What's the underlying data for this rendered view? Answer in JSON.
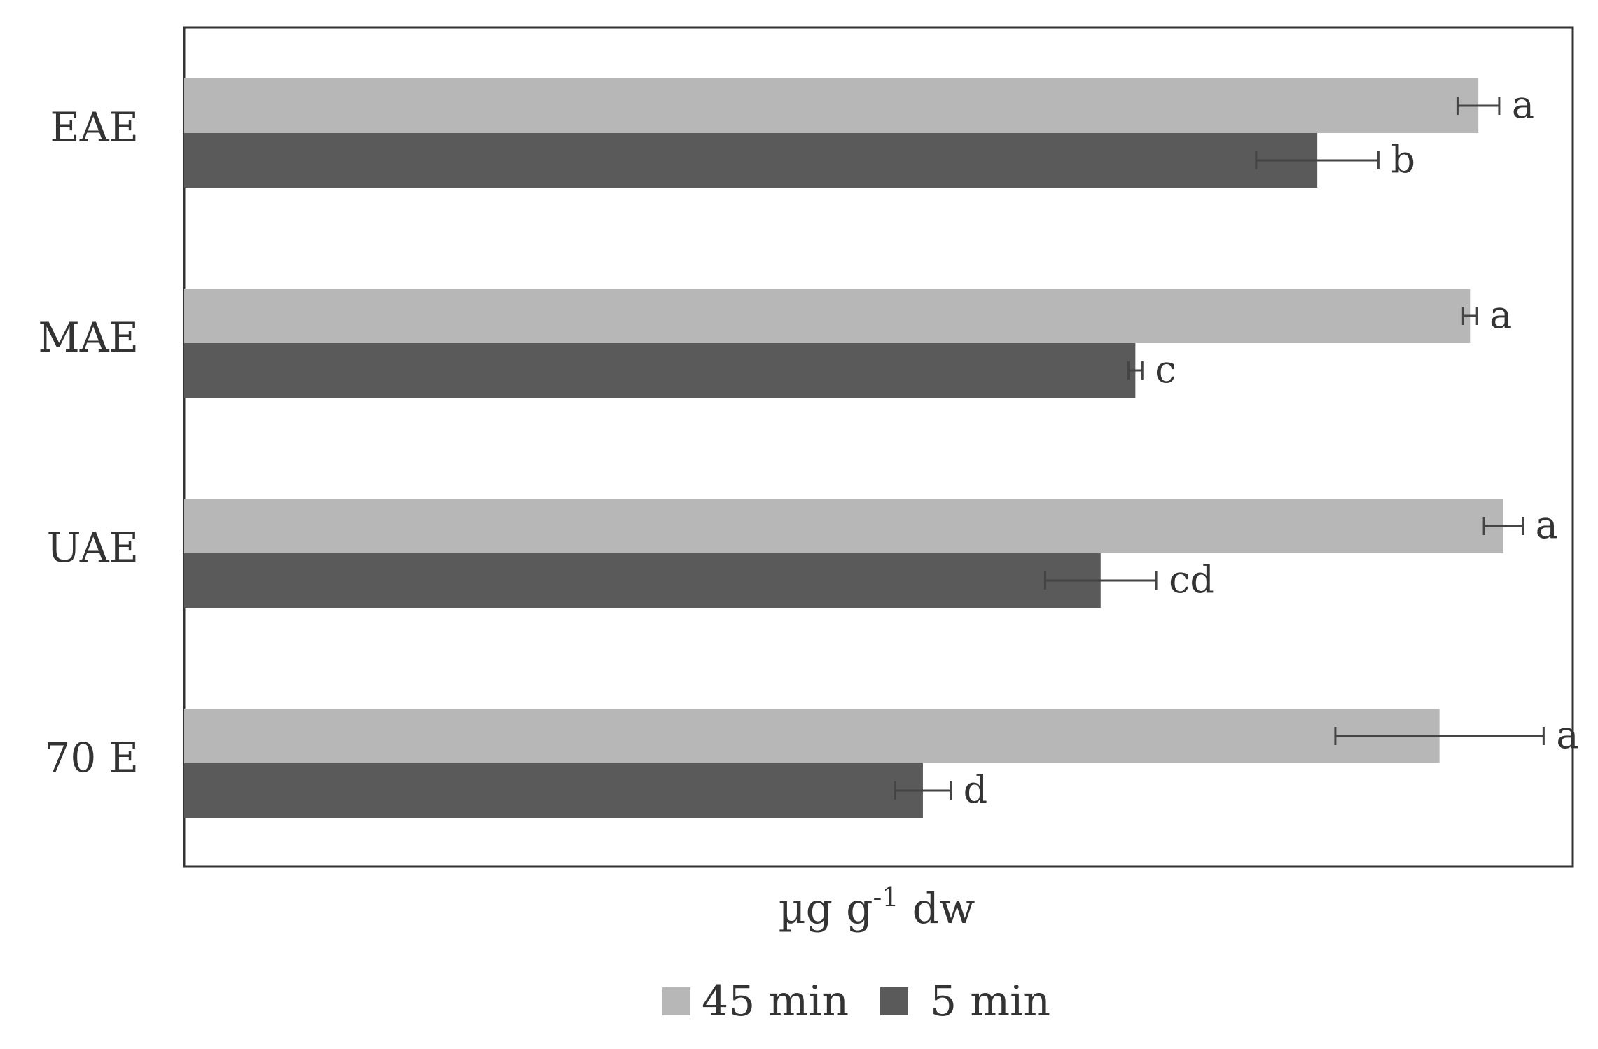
{
  "chart_data": {
    "type": "bar",
    "orientation": "horizontal",
    "categories": [
      "EAE",
      "MAE",
      "UAE",
      "70 E"
    ],
    "series": [
      {
        "name": "45 min",
        "color": "#b7b7b7",
        "values": [
          93.2,
          92.6,
          95.0,
          90.4
        ],
        "errors": [
          1.5,
          0.5,
          1.4,
          7.5
        ],
        "significance": [
          "a",
          "a",
          "a",
          "a"
        ]
      },
      {
        "name": "5 min",
        "color": "#5a5a5a",
        "values": [
          81.6,
          68.5,
          66.0,
          53.2
        ],
        "errors": [
          4.4,
          0.5,
          4.0,
          2.0
        ],
        "significance": [
          "b",
          "c",
          "cd",
          "d"
        ]
      }
    ],
    "xlabel": "µg g",
    "xlabel_superscript": "-1",
    "xlabel_suffix": " dw",
    "xlim": [
      0,
      100
    ],
    "grid": false,
    "legend": "bottom",
    "frame_color": "#333333"
  }
}
